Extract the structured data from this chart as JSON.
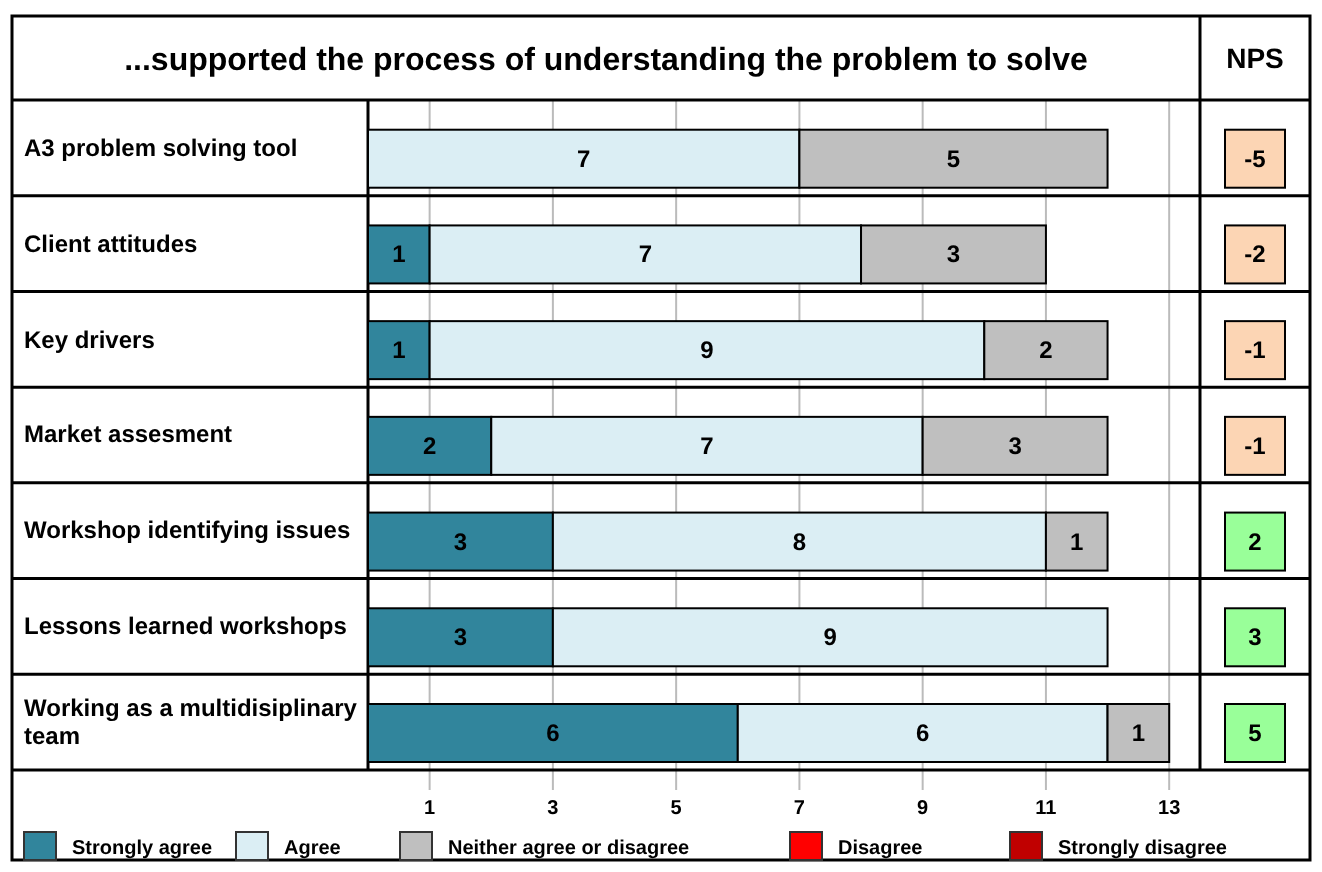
{
  "chart_data": {
    "type": "bar",
    "orientation": "horizontal",
    "stacked": true,
    "title": "...supported the process of understanding the problem to solve",
    "categories": [
      "A3 problem solving tool",
      "Client attitudes",
      "Key drivers",
      "Market assesment",
      "Workshop identifying issues",
      "Lessons learned workshops",
      "Working as a multidisiplinary team"
    ],
    "series": [
      {
        "name": "Strongly agree",
        "color": "#31859c",
        "values": [
          0,
          1,
          1,
          2,
          3,
          3,
          6
        ],
        "value_labels": [
          null,
          "1",
          "1",
          "2",
          "3",
          "3",
          "6"
        ]
      },
      {
        "name": "Agree",
        "color": "#dbeef4",
        "values": [
          7,
          7,
          9,
          7,
          8,
          9,
          6
        ],
        "value_labels": [
          "7",
          "7",
          "9",
          "7",
          "8",
          "9",
          "6"
        ]
      },
      {
        "name": "Neither agree or disagree",
        "color": "#bfbfbf",
        "values": [
          5,
          3,
          2,
          3,
          1,
          0,
          1
        ],
        "value_labels": [
          "5",
          "3",
          "2",
          "3",
          "1",
          null,
          "1"
        ]
      },
      {
        "name": "Disagree",
        "color": "#ff0000",
        "values": [
          0,
          0,
          0,
          0,
          0,
          0,
          0
        ],
        "value_labels": [
          null,
          null,
          null,
          null,
          null,
          null,
          null
        ]
      },
      {
        "name": "Strongly disagree",
        "color": "#c00000",
        "values": [
          0,
          0,
          0,
          0,
          0,
          0,
          0
        ],
        "value_labels": [
          null,
          null,
          null,
          null,
          null,
          null,
          null
        ]
      }
    ],
    "xlim": [
      0,
      13.5
    ],
    "xticks": [
      1,
      3,
      5,
      7,
      9,
      11,
      13
    ],
    "grid": "x",
    "legend": "bottom",
    "annotations": [
      "NPS",
      "-5",
      "-2",
      "-1",
      "-1",
      "2",
      "3",
      "5"
    ]
  }
}
